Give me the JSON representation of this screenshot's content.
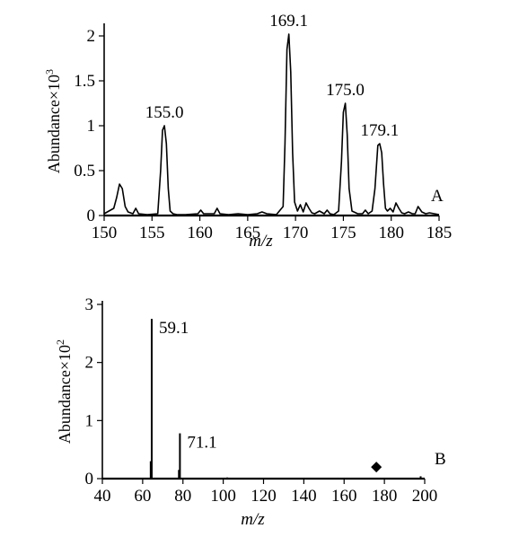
{
  "chart_data": [
    {
      "panel_label": "A",
      "type": "line",
      "xlabel": "m/z",
      "ylabel": "Abundance×10",
      "ylabel_exponent": "3",
      "xlim": [
        150,
        185
      ],
      "ylim": [
        0,
        2.1
      ],
      "xticks": [
        150,
        155,
        160,
        165,
        170,
        175,
        180,
        185
      ],
      "yticks": [
        0,
        0.5,
        1,
        1.5,
        2
      ],
      "ytick_labels": [
        "0",
        "0.5",
        "1",
        "1.5",
        "2"
      ],
      "series": [
        {
          "x": [
            150,
            150.5,
            151.0,
            151.3,
            151.6,
            151.9,
            152.2,
            152.5,
            153.0,
            153.3,
            153.6,
            154.5,
            155.6,
            155.9,
            156.1,
            156.3,
            156.5,
            156.7,
            156.9,
            157.2,
            157.6,
            158.5,
            159.8,
            160.1,
            160.4,
            161.5,
            161.8,
            162.1,
            163.0,
            164.0,
            165.0,
            166.0,
            166.5,
            167.0,
            168.0,
            168.7,
            168.9,
            169.1,
            169.3,
            169.5,
            169.7,
            169.9,
            170.2,
            170.5,
            170.8,
            171.1,
            171.4,
            171.7,
            172.0,
            172.5,
            173.0,
            173.3,
            173.6,
            174.0,
            174.5,
            174.8,
            175.0,
            175.2,
            175.4,
            175.6,
            175.9,
            176.5,
            177.0,
            177.3,
            177.6,
            178.0,
            178.3,
            178.6,
            178.8,
            179.0,
            179.2,
            179.4,
            179.6,
            179.9,
            180.2,
            180.5,
            180.8,
            181.1,
            181.4,
            181.8,
            182.2,
            182.5,
            182.8,
            183.2,
            183.6,
            184.0,
            184.5,
            185.0
          ],
          "y": [
            0.02,
            0.05,
            0.08,
            0.2,
            0.35,
            0.3,
            0.1,
            0.04,
            0.02,
            0.08,
            0.02,
            0.01,
            0.02,
            0.5,
            0.95,
            1.0,
            0.8,
            0.3,
            0.05,
            0.02,
            0.01,
            0.01,
            0.02,
            0.06,
            0.02,
            0.02,
            0.08,
            0.02,
            0.01,
            0.02,
            0.01,
            0.02,
            0.04,
            0.02,
            0.01,
            0.1,
            0.8,
            1.85,
            2.02,
            1.6,
            0.7,
            0.15,
            0.05,
            0.12,
            0.04,
            0.14,
            0.08,
            0.03,
            0.02,
            0.05,
            0.02,
            0.06,
            0.02,
            0.01,
            0.05,
            0.6,
            1.15,
            1.25,
            0.9,
            0.3,
            0.05,
            0.02,
            0.02,
            0.06,
            0.02,
            0.05,
            0.3,
            0.78,
            0.8,
            0.7,
            0.35,
            0.08,
            0.05,
            0.08,
            0.04,
            0.14,
            0.08,
            0.03,
            0.02,
            0.04,
            0.02,
            0.02,
            0.1,
            0.04,
            0.02,
            0.03,
            0.02,
            0.01
          ]
        }
      ],
      "annotations": [
        {
          "text": "155.0",
          "x": 156.3,
          "y": 1.0
        },
        {
          "text": "169.1",
          "x": 169.3,
          "y": 2.02
        },
        {
          "text": "175.0",
          "x": 175.2,
          "y": 1.25
        },
        {
          "text": "179.1",
          "x": 178.8,
          "y": 0.8
        }
      ]
    },
    {
      "panel_label": "B",
      "type": "bar",
      "xlabel": "m/z",
      "ylabel": "Abundance×10",
      "ylabel_exponent": "2",
      "xlim": [
        40,
        200
      ],
      "ylim": [
        0,
        3
      ],
      "xticks": [
        40,
        60,
        80,
        100,
        120,
        140,
        160,
        180,
        200
      ],
      "yticks": [
        0,
        1,
        2,
        3
      ],
      "ytick_labels": [
        "0",
        "1",
        "2",
        "3"
      ],
      "series": [
        {
          "x": [
            64,
            64.5,
            78,
            78.5,
            102,
            198
          ],
          "y": [
            0.3,
            2.75,
            0.15,
            0.78,
            0.02,
            0.04
          ]
        }
      ],
      "annotations": [
        {
          "text": "59.1",
          "x": 64.5,
          "y": 2.75
        },
        {
          "text": "71.1",
          "x": 78.5,
          "y": 0.78
        }
      ],
      "markers": [
        {
          "shape": "diamond",
          "x": 176,
          "y": 0.2
        }
      ]
    }
  ]
}
